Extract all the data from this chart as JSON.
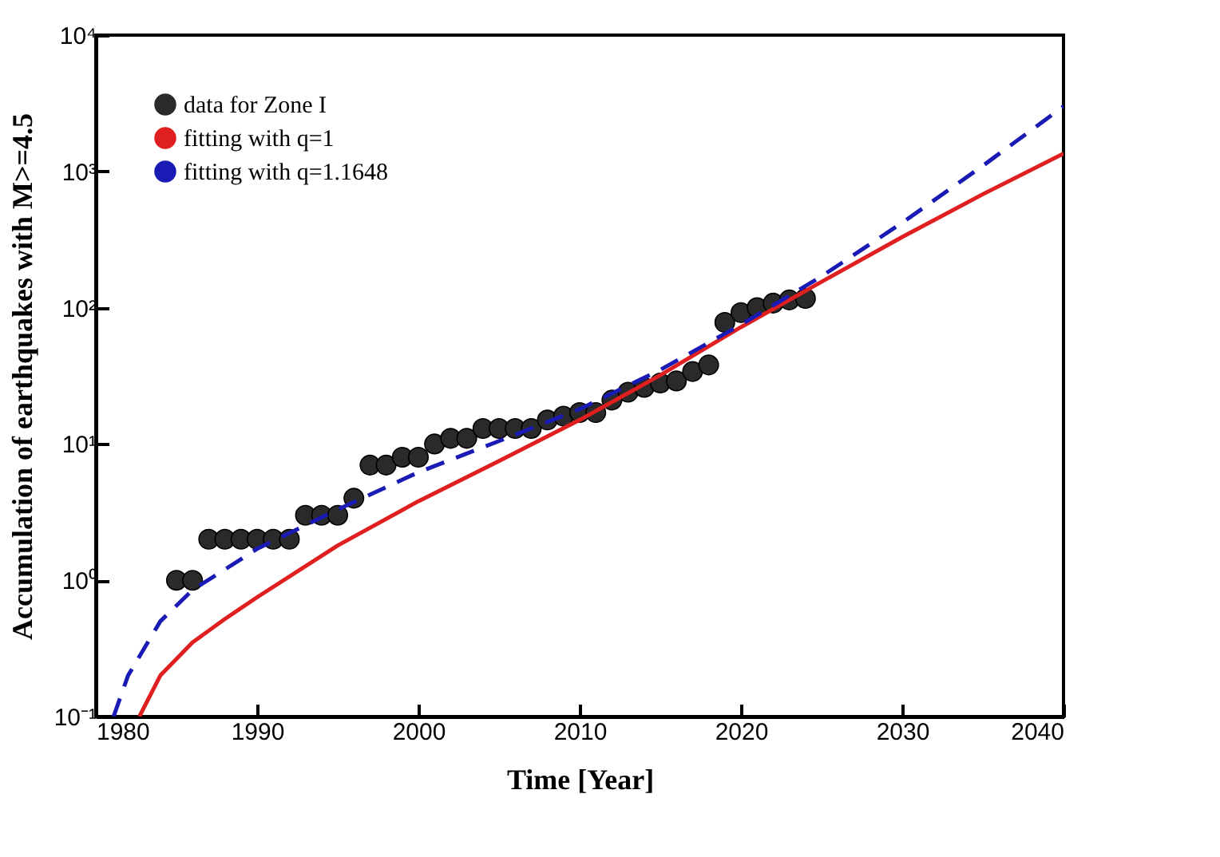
{
  "chart_data": {
    "type": "scatter",
    "xlabel": "Time [Year]",
    "ylabel": "Accumulation of earthquakes with M>=4.5",
    "log": "y",
    "xlim": [
      1980,
      2040
    ],
    "xticks": [
      1980,
      1990,
      2000,
      2010,
      2020,
      2030,
      2040
    ],
    "ylim": [
      0.1,
      10000
    ],
    "yticks": [
      {
        "value": 0.1,
        "label": "10⁻¹"
      },
      {
        "value": 1,
        "label": "10⁰"
      },
      {
        "value": 10,
        "label": "10¹"
      },
      {
        "value": 100,
        "label": "10²"
      },
      {
        "value": 1000,
        "label": "10³"
      },
      {
        "value": 10000,
        "label": "10⁴"
      }
    ],
    "grid": false,
    "legend": "top left",
    "series": [
      {
        "name": "data for Zone I",
        "marker": "circle",
        "color": "#2a2a2a",
        "x": [
          1985,
          1986,
          1987,
          1988,
          1989,
          1990,
          1991,
          1992,
          1993,
          1994,
          1995,
          1996,
          1997,
          1998,
          1999,
          2000,
          2001,
          2002,
          2003,
          2004,
          2005,
          2006,
          2007,
          2008,
          2009,
          2010,
          2011,
          2012,
          2013,
          2014,
          2015,
          2016,
          2017,
          2018,
          2019,
          2020,
          2021,
          2022,
          2023,
          2024
        ],
        "values": [
          1,
          1,
          2,
          2,
          2,
          2,
          2,
          2,
          3,
          3,
          3,
          4,
          7,
          7,
          8,
          8,
          10,
          11,
          11,
          13,
          13,
          13,
          13,
          15,
          16,
          17,
          17,
          21,
          24,
          26,
          28,
          29,
          34,
          38,
          78,
          92,
          100,
          108,
          114,
          117
        ]
      },
      {
        "name": "fitting with q=1",
        "type": "line",
        "line_style": "solid",
        "color": "#e02020",
        "x": [
          1982.7,
          1984,
          1986,
          1988,
          1990,
          1995,
          2000,
          2005,
          2010,
          2015,
          2020,
          2025,
          2030,
          2035,
          2040
        ],
        "values": [
          0.1,
          0.2,
          0.35,
          0.52,
          0.75,
          1.8,
          3.8,
          7.5,
          15,
          32,
          72,
          155,
          330,
          680,
          1350
        ]
      },
      {
        "name": "fitting with q=1.1648",
        "type": "line",
        "line_style": "dashed",
        "color": "#1a1ab4",
        "x": [
          1981.1,
          1982,
          1984,
          1986,
          1988,
          1990,
          1995,
          2000,
          2005,
          2010,
          2015,
          2020,
          2025,
          2030,
          2035,
          2040
        ],
        "values": [
          0.1,
          0.2,
          0.5,
          0.85,
          1.2,
          1.7,
          3.3,
          6.2,
          10.5,
          18,
          35,
          75,
          170,
          420,
          1100,
          3000
        ]
      }
    ]
  }
}
